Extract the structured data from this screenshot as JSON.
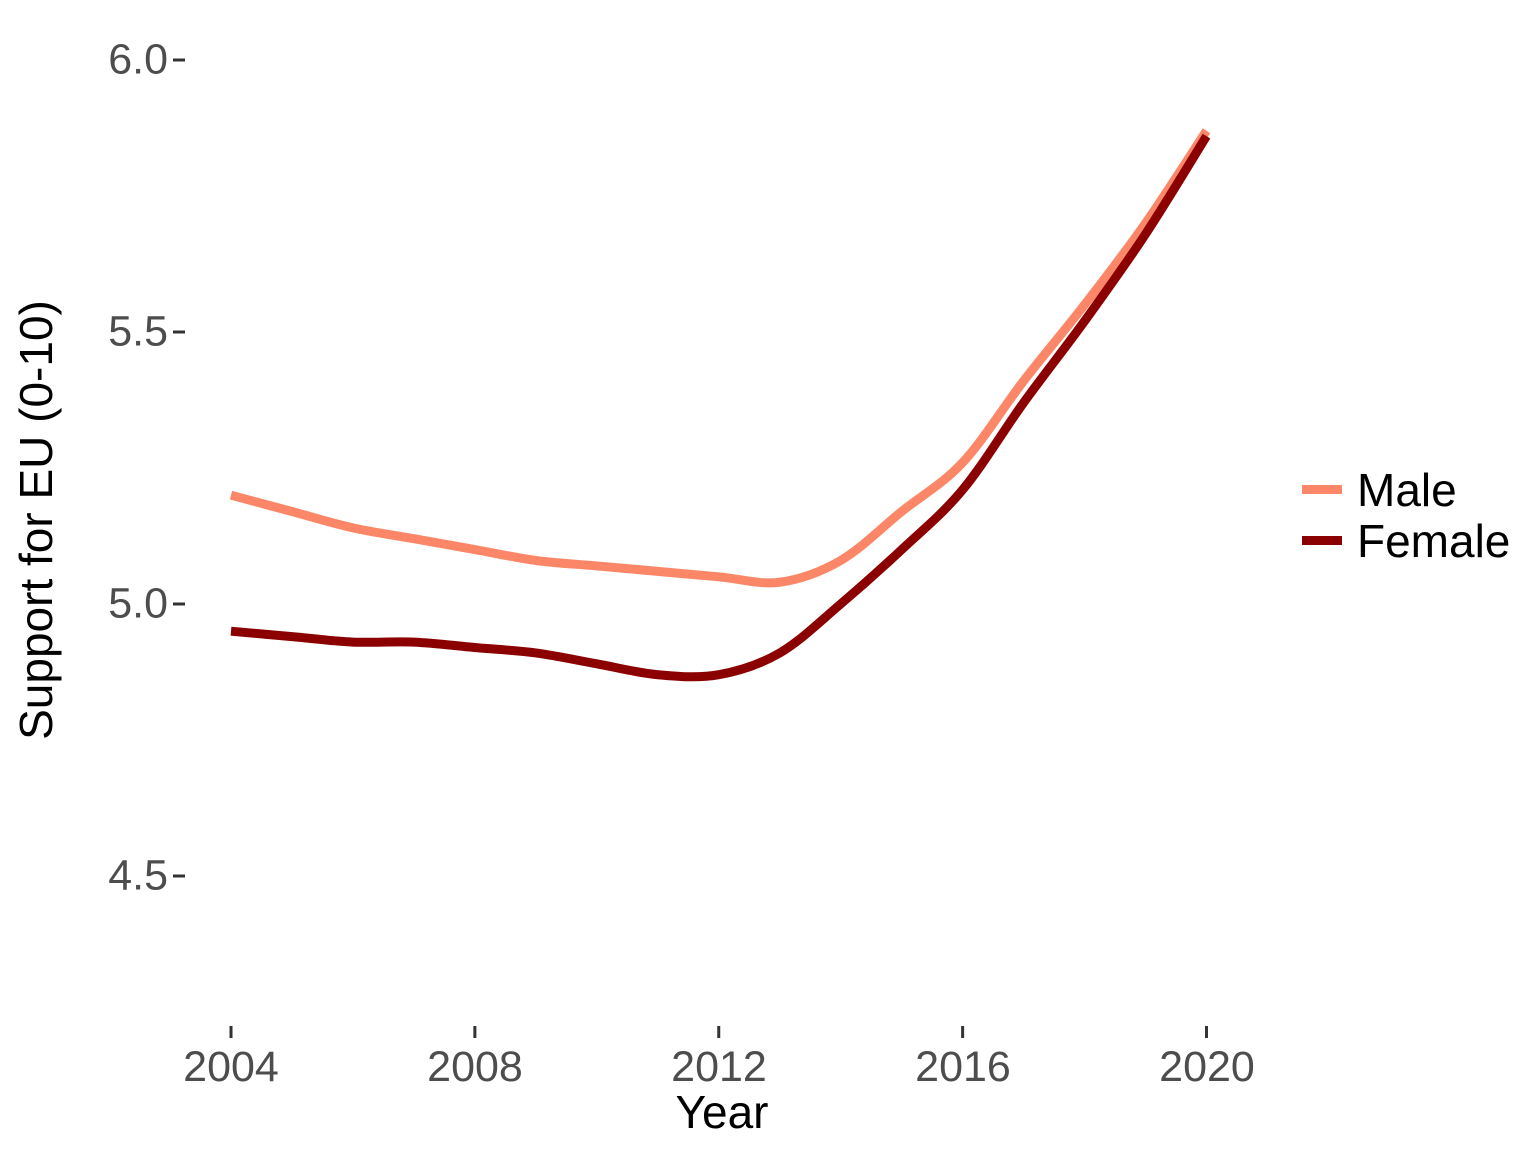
{
  "colors": {
    "background": "#ffffff",
    "tick_mark": "#333333",
    "tick_label": "#4d4d4d",
    "axis_title": "#000000",
    "male_line": "#FB8768",
    "female_line": "#8B0000"
  },
  "legend": {
    "position": "right"
  },
  "chart_data": {
    "type": "line",
    "title": "",
    "xlabel": "Year",
    "ylabel": "Support for EU (0-10)",
    "xlim": [
      2004,
      2020
    ],
    "ylim": [
      4.5,
      6.0
    ],
    "grid": false,
    "legend_position": "right",
    "x_ticks": [
      2004,
      2008,
      2012,
      2016,
      2020
    ],
    "x_tick_labels": [
      "2004",
      "2008",
      "2012",
      "2016",
      "2020"
    ],
    "y_ticks": [
      6.0,
      5.5,
      5.0,
      4.5
    ],
    "y_tick_labels": [
      "6.0",
      "5.5",
      "5.0",
      "4.5"
    ],
    "x": [
      2004,
      2005,
      2006,
      2007,
      2008,
      2009,
      2010,
      2011,
      2012,
      2013,
      2014,
      2015,
      2016,
      2017,
      2018,
      2019,
      2020
    ],
    "series": [
      {
        "name": "Male",
        "color": "#FB8768",
        "values": [
          5.2,
          5.17,
          5.14,
          5.12,
          5.1,
          5.08,
          5.07,
          5.06,
          5.05,
          5.04,
          5.08,
          5.17,
          5.26,
          5.41,
          5.55,
          5.7,
          5.87
        ]
      },
      {
        "name": "Female",
        "color": "#8B0000",
        "values": [
          4.95,
          4.94,
          4.93,
          4.93,
          4.92,
          4.91,
          4.89,
          4.87,
          4.87,
          4.91,
          5.0,
          5.1,
          5.21,
          5.37,
          5.52,
          5.68,
          5.86
        ]
      }
    ]
  }
}
